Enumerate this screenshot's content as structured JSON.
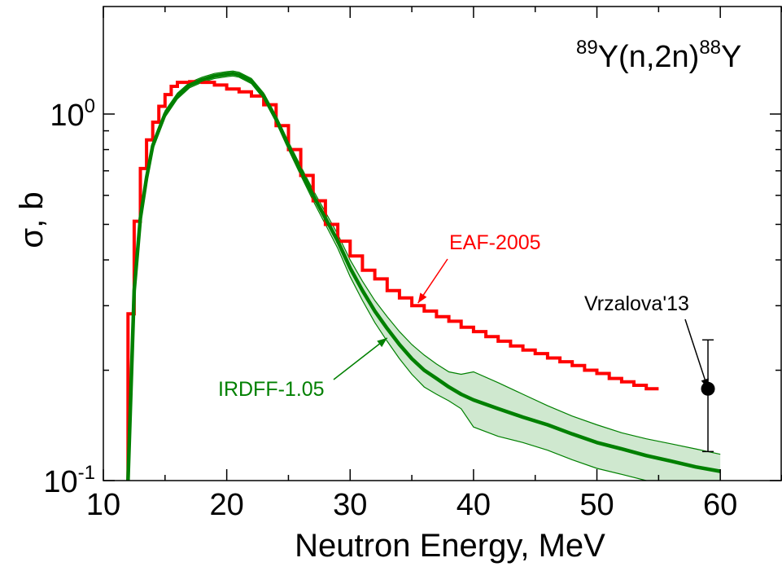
{
  "chart_data": {
    "type": "line",
    "title": "",
    "xlabel": "Neutron Energy,  MeV",
    "ylabel": "σ, b",
    "xlim": [
      10,
      65
    ],
    "ylim": [
      0.1,
      2.0
    ],
    "yscale": "log",
    "x_ticks": [
      "10",
      "20",
      "30",
      "40",
      "50",
      "60"
    ],
    "y_ticks": [
      {
        "base": "10",
        "exp": "0",
        "value": 1.0
      },
      {
        "base": "10",
        "exp": "-1",
        "value": 0.1
      }
    ],
    "grid": false,
    "reaction_label": {
      "mass1": "89",
      "target": "Y(n,2n)",
      "mass2": "88",
      "product": "Y"
    },
    "series": [
      {
        "name": "EAF-2005",
        "style": "step",
        "color": "#ff0000",
        "x": [
          12,
          12.5,
          13,
          13.5,
          14,
          14.5,
          15,
          15.5,
          16,
          17,
          18,
          19,
          20,
          21,
          22,
          23,
          24,
          25,
          26,
          27,
          28,
          29,
          30,
          31,
          32,
          33,
          34,
          35,
          36,
          37,
          38,
          39,
          40,
          41,
          42,
          43,
          44,
          45,
          46,
          47,
          48,
          49,
          50,
          51,
          52,
          53,
          54
        ],
        "y": [
          0.285,
          0.51,
          0.71,
          0.85,
          0.95,
          1.05,
          1.13,
          1.19,
          1.22,
          1.225,
          1.22,
          1.2,
          1.17,
          1.15,
          1.12,
          1.06,
          0.93,
          0.8,
          0.68,
          0.58,
          0.5,
          0.45,
          0.41,
          0.375,
          0.355,
          0.33,
          0.315,
          0.3,
          0.29,
          0.28,
          0.272,
          0.262,
          0.255,
          0.247,
          0.24,
          0.233,
          0.227,
          0.222,
          0.216,
          0.211,
          0.206,
          0.2,
          0.196,
          0.19,
          0.186,
          0.182,
          0.178
        ]
      },
      {
        "name": "IRDFF-1.05",
        "style": "line-with-uncertainty",
        "color": "#008000",
        "band_color": "#cfe8cf",
        "x": [
          12,
          12.5,
          13,
          13.5,
          14,
          15,
          16,
          17,
          18,
          19,
          20,
          20.5,
          21,
          22,
          23,
          24,
          25,
          26,
          27,
          28,
          29,
          30,
          31,
          32,
          33,
          34,
          35,
          36,
          37,
          38,
          39,
          40,
          42,
          44,
          46,
          48,
          50,
          52,
          54,
          56,
          58,
          60
        ],
        "y": [
          0.1,
          0.33,
          0.52,
          0.67,
          0.82,
          1.0,
          1.12,
          1.2,
          1.24,
          1.27,
          1.285,
          1.29,
          1.28,
          1.23,
          1.12,
          0.97,
          0.82,
          0.7,
          0.6,
          0.52,
          0.45,
          0.38,
          0.33,
          0.29,
          0.26,
          0.235,
          0.215,
          0.2,
          0.19,
          0.18,
          0.172,
          0.166,
          0.157,
          0.149,
          0.142,
          0.134,
          0.127,
          0.122,
          0.117,
          0.113,
          0.109,
          0.106
        ],
        "y_upper": [
          0.1,
          0.34,
          0.54,
          0.69,
          0.84,
          1.02,
          1.14,
          1.22,
          1.26,
          1.29,
          1.305,
          1.31,
          1.3,
          1.25,
          1.14,
          0.99,
          0.84,
          0.72,
          0.62,
          0.54,
          0.47,
          0.4,
          0.35,
          0.31,
          0.28,
          0.255,
          0.235,
          0.22,
          0.208,
          0.198,
          0.195,
          0.198,
          0.185,
          0.172,
          0.16,
          0.15,
          0.142,
          0.135,
          0.13,
          0.126,
          0.122,
          0.118
        ],
        "y_lower": [
          0.1,
          0.32,
          0.5,
          0.65,
          0.8,
          0.98,
          1.1,
          1.18,
          1.22,
          1.25,
          1.265,
          1.27,
          1.26,
          1.21,
          1.1,
          0.95,
          0.8,
          0.68,
          0.58,
          0.5,
          0.43,
          0.36,
          0.31,
          0.27,
          0.24,
          0.215,
          0.195,
          0.18,
          0.172,
          0.165,
          0.157,
          0.14,
          0.132,
          0.127,
          0.121,
          0.114,
          0.108,
          0.104,
          0.1,
          0.097,
          0.093,
          0.09
        ]
      },
      {
        "name": "Vrzalova'13",
        "style": "point-with-errorbar",
        "color": "#000000",
        "x": [
          59
        ],
        "y": [
          0.178
        ],
        "y_err_upper": [
          0.242
        ],
        "y_err_lower": [
          0.12
        ]
      }
    ],
    "annotations": [
      {
        "text": "EAF-2005",
        "color": "#ff0000",
        "points_to": [
          35.5,
          0.305
        ]
      },
      {
        "text": "IRDFF-1.05",
        "color": "#008000",
        "points_to": [
          33,
          0.245
        ]
      },
      {
        "text": "Vrzalova'13",
        "color": "#000000",
        "points_to": [
          59,
          0.178
        ]
      }
    ]
  }
}
